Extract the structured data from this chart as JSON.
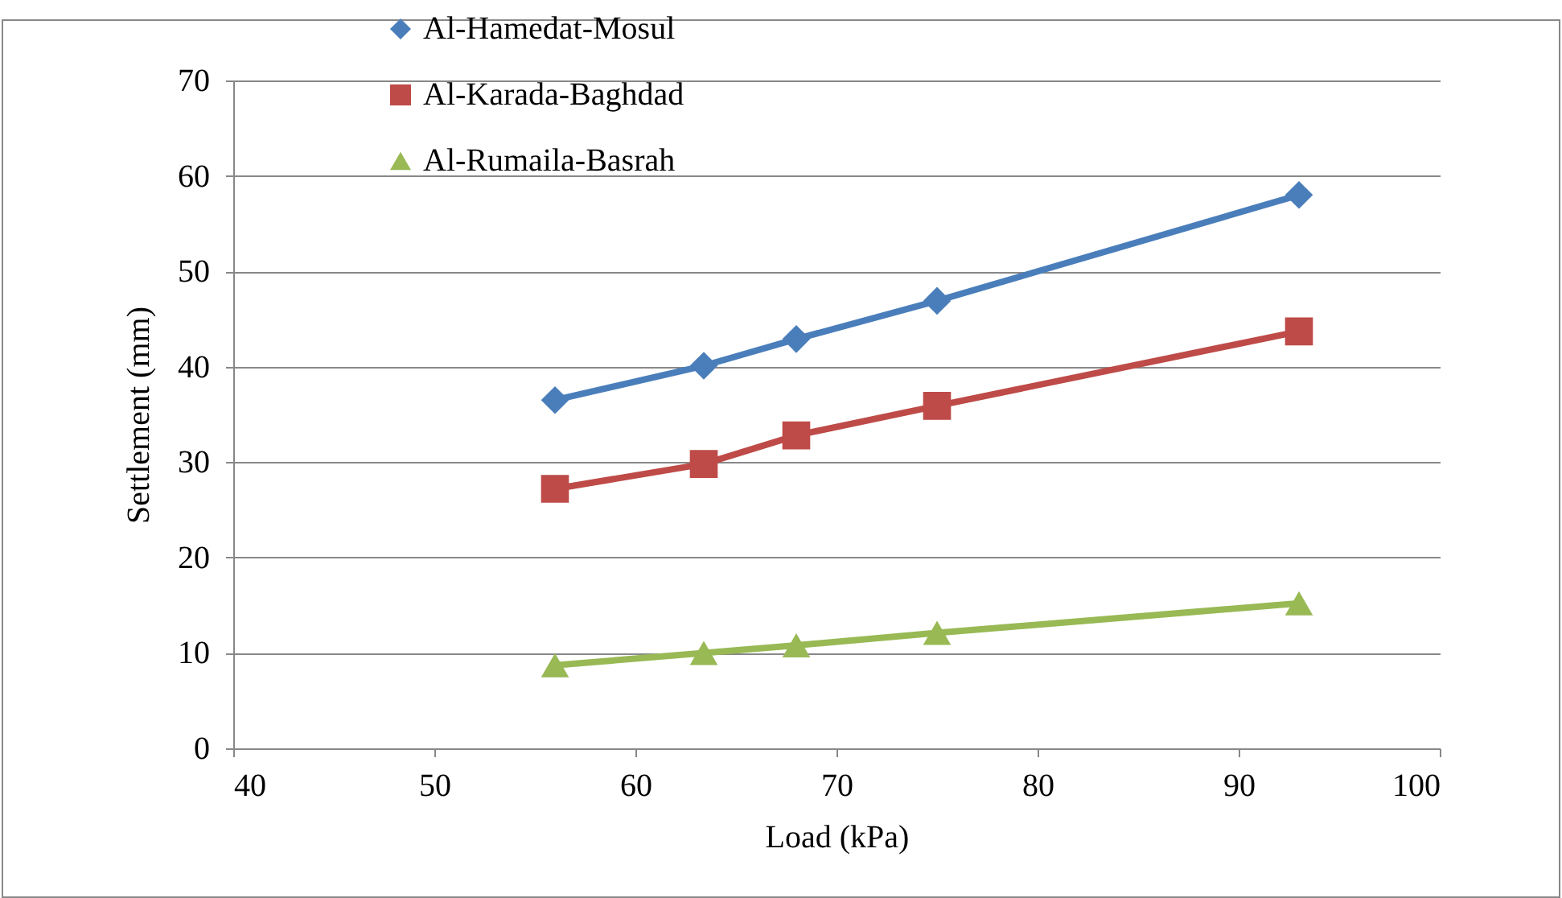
{
  "chart_data": {
    "type": "line",
    "xlabel": "Load (kPa)",
    "ylabel": "Settlement (mm)",
    "x": [
      56,
      63.4,
      68,
      75,
      93
    ],
    "series": [
      {
        "name": "Al-Hamedat-Mosul",
        "color": "#4a7ebb",
        "marker": "diamond",
        "values": [
          36.5,
          40.1,
          42.9,
          46.9,
          58.0
        ]
      },
      {
        "name": "Al-Karada-Baghdad",
        "color": "#be4b48",
        "marker": "square",
        "values": [
          27.2,
          29.8,
          32.8,
          35.9,
          43.7
        ]
      },
      {
        "name": "Al-Rumaila-Basrah",
        "color": "#98b954",
        "marker": "triangle",
        "values": [
          8.7,
          10.0,
          10.8,
          12.1,
          15.2
        ]
      }
    ],
    "xlim": [
      40,
      100
    ],
    "xticks": [
      40,
      50,
      60,
      70,
      80,
      90,
      100
    ],
    "ylim": [
      0,
      70
    ],
    "yticks": [
      0,
      10,
      20,
      30,
      40,
      50,
      60,
      70
    ],
    "grid": "y",
    "legend": "top left",
    "line_style": "solid"
  }
}
